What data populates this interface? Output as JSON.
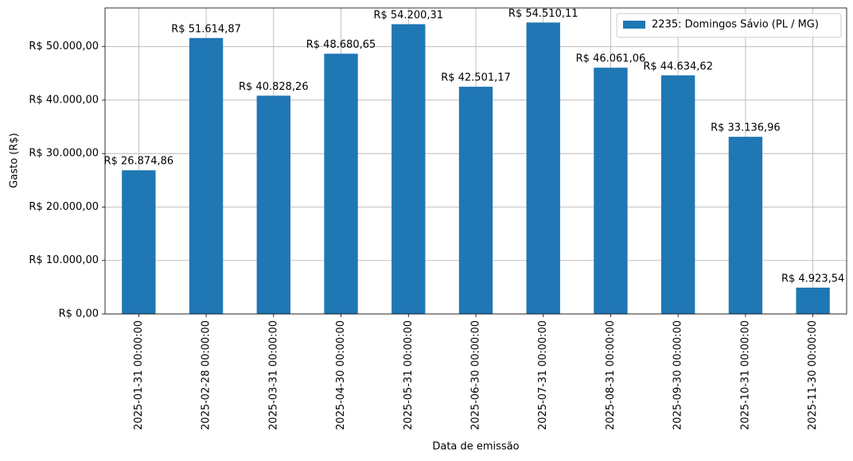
{
  "chart_data": {
    "type": "bar",
    "x_label": "Data de emissão",
    "y_label": "Gasto (R$)",
    "categories": [
      "2025-01-31 00:00:00",
      "2025-02-28 00:00:00",
      "2025-03-31 00:00:00",
      "2025-04-30 00:00:00",
      "2025-05-31 00:00:00",
      "2025-06-30 00:00:00",
      "2025-07-31 00:00:00",
      "2025-08-31 00:00:00",
      "2025-09-30 00:00:00",
      "2025-10-31 00:00:00",
      "2025-11-30 00:00:00"
    ],
    "series": [
      {
        "name": "2235: Domingos Sávio (PL / MG)",
        "color": "#1f77b4",
        "values": [
          26874.86,
          51614.87,
          40828.26,
          48680.65,
          54200.31,
          42501.17,
          54510.11,
          46061.06,
          44634.62,
          33136.96,
          4923.54
        ],
        "value_labels": [
          "R$ 26.874,86",
          "R$ 51.614,87",
          "R$ 40.828,26",
          "R$ 48.680,65",
          "R$ 54.200,31",
          "R$ 42.501,17",
          "R$ 54.510,11",
          "R$ 46.061,06",
          "R$ 44.634,62",
          "R$ 33.136,96",
          "R$ 4.923,54"
        ]
      }
    ],
    "ylim": [
      0,
      57236
    ],
    "yticks": [
      {
        "value": 0,
        "label": "R$ 0,00"
      },
      {
        "value": 10000,
        "label": "R$ 10.000,00"
      },
      {
        "value": 20000,
        "label": "R$ 20.000,00"
      },
      {
        "value": 30000,
        "label": "R$ 30.000,00"
      },
      {
        "value": 40000,
        "label": "R$ 40.000,00"
      },
      {
        "value": 50000,
        "label": "R$ 50.000,00"
      }
    ],
    "grid": true,
    "legend": "upper right"
  }
}
